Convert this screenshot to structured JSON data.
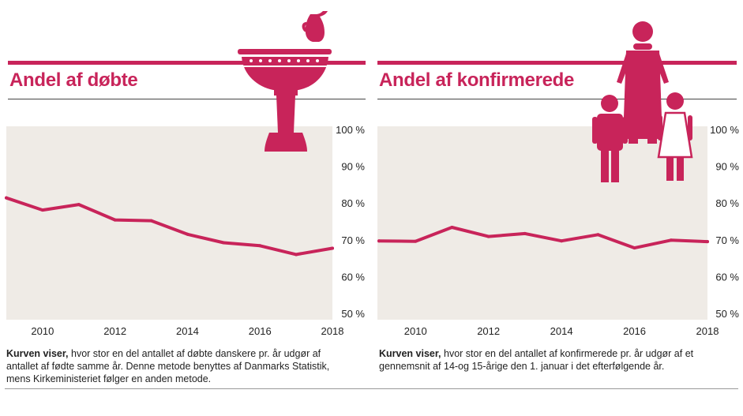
{
  "chart_data": [
    {
      "type": "line",
      "title": "Andel af døbte",
      "x": [
        2009,
        2010,
        2011,
        2012,
        2013,
        2014,
        2015,
        2016,
        2017,
        2018
      ],
      "series": [
        {
          "values": [
            81.4,
            78.1,
            79.6,
            75.4,
            75.2,
            71.5,
            69.2,
            68.4,
            66.0,
            67.7
          ]
        }
      ],
      "x_ticks": [
        "2010",
        "2012",
        "2014",
        "2016",
        "2018"
      ],
      "y_ticks": [
        "100 %",
        "90 %",
        "80 %",
        "70 %",
        "60 %",
        "50 %"
      ],
      "ylim": [
        50,
        100
      ],
      "xlim": [
        2009,
        2018
      ],
      "grid": false,
      "caption_bold": "Kurven viser,",
      "caption_text": " hvor stor en del antallet af døbte danskere pr. år udgør af antallet af fødte samme år. Denne metode benyttes af Danmarks Statistik, mens Kirkeministeriet følger en anden metode.",
      "icon": "baptismal-font-icon"
    },
    {
      "type": "line",
      "title": "Andel af konfirmerede",
      "x": [
        2009,
        2010,
        2011,
        2012,
        2013,
        2014,
        2015,
        2016,
        2017,
        2018
      ],
      "series": [
        {
          "values": [
            69.7,
            69.6,
            73.4,
            70.9,
            71.7,
            69.7,
            71.4,
            67.8,
            69.9,
            69.5
          ]
        }
      ],
      "x_ticks": [
        "2010",
        "2012",
        "2014",
        "2016",
        "2018"
      ],
      "y_ticks": [
        "100 %",
        "90 %",
        "80 %",
        "70 %",
        "60 %",
        "50 %"
      ],
      "ylim": [
        50,
        100
      ],
      "xlim": [
        2009,
        2018
      ],
      "grid": false,
      "caption_bold": "Kurven viser,",
      "caption_text": " hvor stor en del antallet af konfirmerede pr. år udgør af et gennemsnit af 14-og 15-årige den 1. januar i det efterfølgende år.",
      "icon": "confirmation-family-icon"
    }
  ],
  "colors": {
    "accent": "#c8245a",
    "plot_bg": "#efebe6",
    "text": "#222222"
  }
}
